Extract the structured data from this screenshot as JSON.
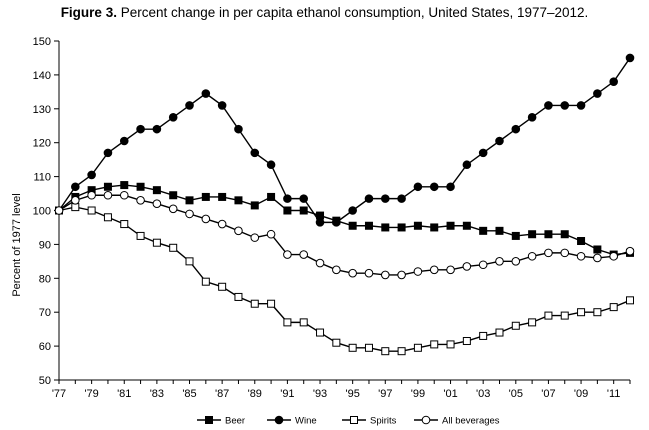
{
  "chart_data": {
    "type": "line",
    "title_bold": "Figure 3.",
    "title": "Percent change in per capita ethanol consumption, United States, 1977–2012.",
    "ylabel": "Percent of 1977 level",
    "xlabel": "",
    "ylim": [
      50,
      150
    ],
    "yticks": [
      50,
      60,
      70,
      80,
      90,
      100,
      110,
      120,
      130,
      140,
      150
    ],
    "x": [
      1977,
      1978,
      1979,
      1980,
      1981,
      1982,
      1983,
      1984,
      1985,
      1986,
      1987,
      1988,
      1989,
      1990,
      1991,
      1992,
      1993,
      1994,
      1995,
      1996,
      1997,
      1998,
      1999,
      2000,
      2001,
      2002,
      2003,
      2004,
      2005,
      2006,
      2007,
      2008,
      2009,
      2010,
      2011,
      2012
    ],
    "xtick_labels": [
      "'77",
      "'79",
      "'81",
      "'83",
      "'85",
      "'87",
      "'89",
      "'91",
      "'93",
      "'95",
      "'97",
      "'99",
      "'01",
      "'03",
      "'05",
      "'07",
      "'09",
      "'11"
    ],
    "grid": false,
    "legend_position": "bottom",
    "series": [
      {
        "name": "Beer",
        "marker": "filled-square",
        "values": [
          100,
          104,
          106,
          107,
          107.5,
          107,
          106,
          104.5,
          103,
          104,
          104,
          103,
          101.5,
          104,
          100,
          100,
          98.5,
          97,
          95.5,
          95.5,
          95,
          95,
          95.5,
          95,
          95.5,
          95.5,
          94,
          94,
          92.5,
          93,
          93,
          93,
          91,
          88.5,
          87,
          87.5
        ]
      },
      {
        "name": "Wine",
        "marker": "filled-circle",
        "values": [
          100,
          107,
          110.5,
          117,
          120.5,
          124,
          124,
          127.5,
          131,
          134.5,
          131,
          124,
          117,
          113.5,
          103.5,
          103.5,
          96.5,
          96.5,
          100,
          103.5,
          103.5,
          103.5,
          107,
          107,
          107,
          113.5,
          117,
          120.5,
          124,
          127.5,
          131,
          131,
          131,
          134.5,
          138,
          145
        ]
      },
      {
        "name": "Spirits",
        "marker": "open-square",
        "values": [
          100,
          101,
          100,
          98,
          96,
          92.5,
          90.5,
          89,
          85,
          79,
          77.5,
          74.5,
          72.5,
          72.5,
          67,
          67,
          64,
          61,
          59.5,
          59.5,
          58.5,
          58.5,
          59.5,
          60.5,
          60.5,
          61.5,
          63,
          64,
          66,
          67,
          69,
          69,
          70,
          70,
          71.5,
          73.5
        ]
      },
      {
        "name": "All beverages",
        "marker": "open-circle",
        "values": [
          100,
          103,
          104.5,
          104.5,
          104.5,
          103,
          102,
          100.5,
          99,
          97.5,
          96,
          94,
          92,
          93,
          87,
          87,
          84.5,
          82.5,
          81.5,
          81.5,
          81,
          81,
          82,
          82.5,
          82.5,
          83.5,
          84,
          85,
          85,
          86.5,
          87.5,
          87.5,
          86.5,
          86,
          86.5,
          88
        ]
      }
    ]
  }
}
